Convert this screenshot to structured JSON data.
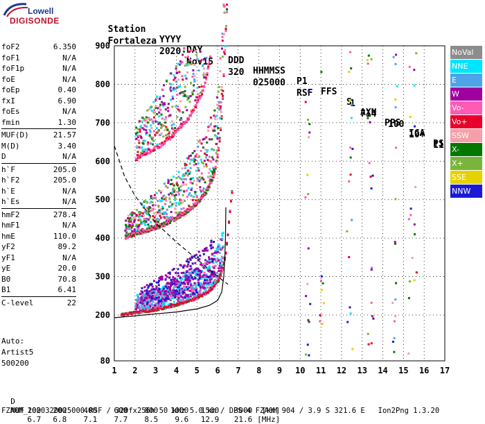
{
  "logo": {
    "company": "Lowell",
    "product": "DIGISONDE"
  },
  "header": {
    "row1": [
      "Station",
      "YYYY",
      "DAY",
      "DDD",
      "HHMMSS",
      "P1",
      "FFS",
      "S",
      "AXN",
      "PPS",
      "IGA",
      "PS"
    ],
    "row2": [
      "Fortaleza",
      "2020",
      "Nov15",
      "320",
      "025000",
      "RSF",
      "",
      "1",
      "714",
      "100",
      "10+",
      "11"
    ]
  },
  "params": [
    {
      "label": "foF2",
      "value": "6.350"
    },
    {
      "label": "foF1",
      "value": "N/A"
    },
    {
      "label": "foF1p",
      "value": "N/A"
    },
    {
      "label": "foE",
      "value": "N/A"
    },
    {
      "label": "foEp",
      "value": "0.40"
    },
    {
      "label": "fxI",
      "value": "6.90"
    },
    {
      "label": "foEs",
      "value": "N/A"
    },
    {
      "label": "fmin",
      "value": "1.30"
    },
    {
      "label": "MUF(D)",
      "value": "21.57"
    },
    {
      "label": "M(D)",
      "value": "3.40"
    },
    {
      "label": "D",
      "value": "N/A"
    },
    {
      "label": "h`F",
      "value": "205.0"
    },
    {
      "label": "h`F2",
      "value": "205.0"
    },
    {
      "label": "h`E",
      "value": "N/A"
    },
    {
      "label": "h`Es",
      "value": "N/A"
    },
    {
      "label": "hmF2",
      "value": "278.4"
    },
    {
      "label": "hmF1",
      "value": "N/A"
    },
    {
      "label": "hmE",
      "value": "110.0"
    },
    {
      "label": "yF2",
      "value": "89.2"
    },
    {
      "label": "yF1",
      "value": "N/A"
    },
    {
      "label": "yE",
      "value": "20.0"
    },
    {
      "label": "B0",
      "value": "70.8"
    },
    {
      "label": "B1",
      "value": "6.41"
    },
    {
      "label": "C-level",
      "value": "22"
    }
  ],
  "auto": {
    "line1": "Auto:",
    "line2": "Artist5",
    "line3": "500200"
  },
  "legend": [
    {
      "label": "NoVal",
      "color": "#8c8c8c"
    },
    {
      "label": "NNE",
      "color": "#00e5ff"
    },
    {
      "label": "E",
      "color": "#4fa3e8"
    },
    {
      "label": "W",
      "color": "#a000a0"
    },
    {
      "label": "Vo-",
      "color": "#ff5ab4"
    },
    {
      "label": "Vo+",
      "color": "#e8002a"
    },
    {
      "label": "SSW",
      "color": "#f5a0a8"
    },
    {
      "label": "X-",
      "color": "#007800"
    },
    {
      "label": "X+",
      "color": "#7ab43c"
    },
    {
      "label": "SSE",
      "color": "#e6d200"
    },
    {
      "label": "NNW",
      "color": "#1a1ad6"
    }
  ],
  "footer": {
    "row_d_label": "D",
    "row_d_values": [
      "100",
      "200",
      "400",
      "600",
      "800",
      "1000",
      "1500",
      "3000",
      "[km]"
    ],
    "row_muf_label": "MUF",
    "row_muf_values": [
      "6.7",
      "6.8",
      "7.1",
      "7.7",
      "8.5",
      "9.6",
      "12.9",
      "21.6",
      "[MHz]"
    ],
    "info": "FZA0M_2020320025000.RSF / 320fx256h 50 kHz 5.0 km / DPS-4 FZA0M 904 / 3.9 S 321.6 E   Ion2Png 1.3.20"
  },
  "chart_data": {
    "type": "scatter",
    "x_ticks": [
      1,
      2,
      3,
      4,
      5,
      6,
      7,
      8,
      9,
      10,
      11,
      12,
      13,
      14,
      15,
      16,
      17
    ],
    "y_ticks": [
      80,
      200,
      300,
      400,
      500,
      600,
      700,
      800,
      900
    ],
    "xlim": [
      1,
      17
    ],
    "ylim": [
      80,
      900
    ],
    "grid": true,
    "legend_position": "right",
    "traces": [
      {
        "name": "ordinary trace",
        "color": "#1a1ad6",
        "points": [
          [
            1.5,
            205
          ],
          [
            2,
            210
          ],
          [
            2.5,
            215
          ],
          [
            3,
            220
          ],
          [
            3.5,
            225
          ],
          [
            4,
            232
          ],
          [
            4.5,
            240
          ],
          [
            5,
            250
          ],
          [
            5.5,
            265
          ],
          [
            6,
            290
          ],
          [
            6.2,
            320
          ],
          [
            6.4,
            380
          ],
          [
            6.6,
            440
          ],
          [
            6.8,
            520
          ]
        ]
      },
      {
        "name": "extraordinary trace",
        "color": "#007800",
        "points": [
          [
            1.4,
            205
          ],
          [
            2,
            212
          ],
          [
            3,
            222
          ],
          [
            4,
            235
          ],
          [
            5,
            255
          ],
          [
            5.8,
            285
          ],
          [
            6.2,
            330
          ],
          [
            6.6,
            460
          ]
        ]
      }
    ],
    "profile_curve": [
      [
        1,
        193
      ],
      [
        2,
        198
      ],
      [
        3,
        203
      ],
      [
        4,
        208
      ],
      [
        5,
        216
      ],
      [
        5.6,
        225
      ],
      [
        6,
        238
      ],
      [
        6.2,
        260
      ],
      [
        6.3,
        300
      ],
      [
        6.35,
        350
      ],
      [
        6.38,
        400
      ],
      [
        6.4,
        480
      ]
    ],
    "muf_curve": [
      [
        1,
        640
      ],
      [
        1.5,
        560
      ],
      [
        2,
        510
      ],
      [
        3,
        440
      ],
      [
        4,
        390
      ],
      [
        5,
        345
      ],
      [
        6,
        300
      ],
      [
        6.5,
        280
      ]
    ]
  }
}
